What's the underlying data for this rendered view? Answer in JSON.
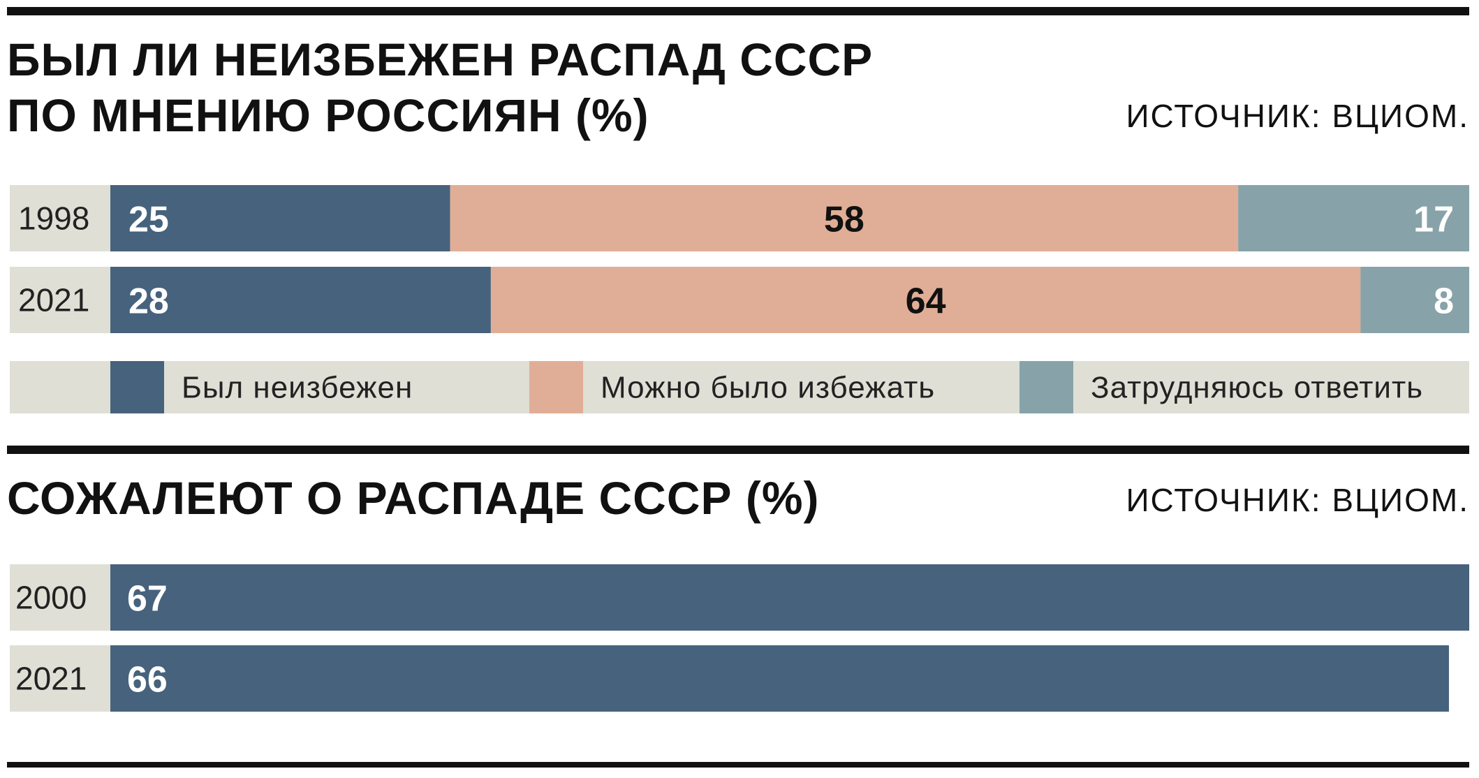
{
  "colors": {
    "inevitable": "#46627d",
    "avoidable": "#e0ae96",
    "no_answer": "#87a3a9",
    "row_bg": "#dfdfd6",
    "rule": "#111111"
  },
  "section1": {
    "title_line1": "БЫЛ ЛИ НЕИЗБЕЖЕН РАСПАД СССР",
    "title_line2": "ПО МНЕНИЮ РОССИЯН (%)",
    "source": "ИСТОЧНИК: ВЦИОМ."
  },
  "section2": {
    "title": "СОЖАЛЕЮТ О РАСПАДЕ СССР (%)",
    "source": "ИСТОЧНИК: ВЦИОМ."
  },
  "chart_data": [
    {
      "type": "bar",
      "stacked": true,
      "orientation": "horizontal",
      "title": "БЫЛ ЛИ НЕИЗБЕЖЕН РАСПАД СССР ПО МНЕНИЮ РОССИЯН (%)",
      "categories": [
        "1998",
        "2021"
      ],
      "series": [
        {
          "name": "Был неизбежен",
          "values": [
            25,
            28
          ]
        },
        {
          "name": "Можно было избежать",
          "values": [
            58,
            64
          ]
        },
        {
          "name": "Затрудняюсь ответить",
          "values": [
            17,
            8
          ]
        }
      ],
      "xlim": [
        0,
        100
      ],
      "legend": "bottom",
      "grid": false
    },
    {
      "type": "bar",
      "orientation": "horizontal",
      "title": "СОЖАЛЕЮТ О РАСПАДЕ СССР (%)",
      "categories": [
        "2000",
        "2021"
      ],
      "values": [
        67,
        66
      ],
      "xlim": [
        0,
        67
      ],
      "grid": false
    }
  ]
}
